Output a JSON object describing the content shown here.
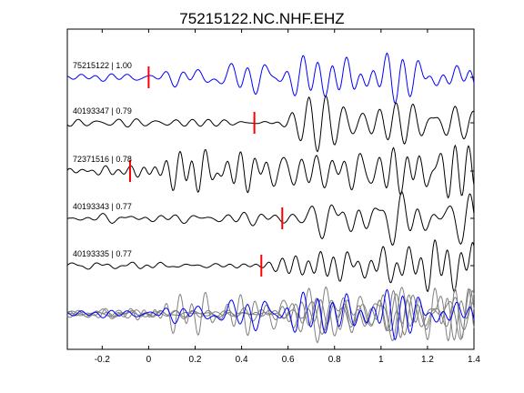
{
  "title": "75215122.NC.NHF.EHZ",
  "chart_data": {
    "type": "line",
    "title": "75215122.NC.NHF.EHZ",
    "xlabel": "",
    "ylabel": "",
    "xlim": [
      -0.35,
      1.4
    ],
    "x_ticks": [
      "-0.2",
      "0",
      "0.2",
      "0.4",
      "0.6",
      "0.8",
      "1",
      "1.2",
      "1.4"
    ],
    "x_tick_values": [
      -0.2,
      0,
      0.2,
      0.4,
      0.6,
      0.8,
      1.0,
      1.2,
      1.4
    ],
    "grid": false,
    "colors": {
      "reference": "#0000ff",
      "other": "#000000",
      "pick": "#ff0000",
      "overlay_other": "#808080"
    },
    "series": [
      {
        "name": "75215122 | 1.00",
        "pick_time": 0.0,
        "amp": 1.0,
        "seed": 1,
        "reference": true
      },
      {
        "name": "40193347 | 0.79",
        "pick_time": 0.455,
        "amp": 1.25,
        "seed": 2,
        "reference": false
      },
      {
        "name": "72371516 | 0.78",
        "pick_time": -0.08,
        "amp": 1.2,
        "seed": 3,
        "reference": false
      },
      {
        "name": "40193343 | 0.77",
        "pick_time": 0.575,
        "amp": 1.35,
        "seed": 4,
        "reference": false
      },
      {
        "name": "40193335 | 0.77",
        "pick_time": 0.485,
        "amp": 1.1,
        "seed": 5,
        "reference": false
      }
    ],
    "overlay": {
      "label": "",
      "includes": "all"
    }
  }
}
